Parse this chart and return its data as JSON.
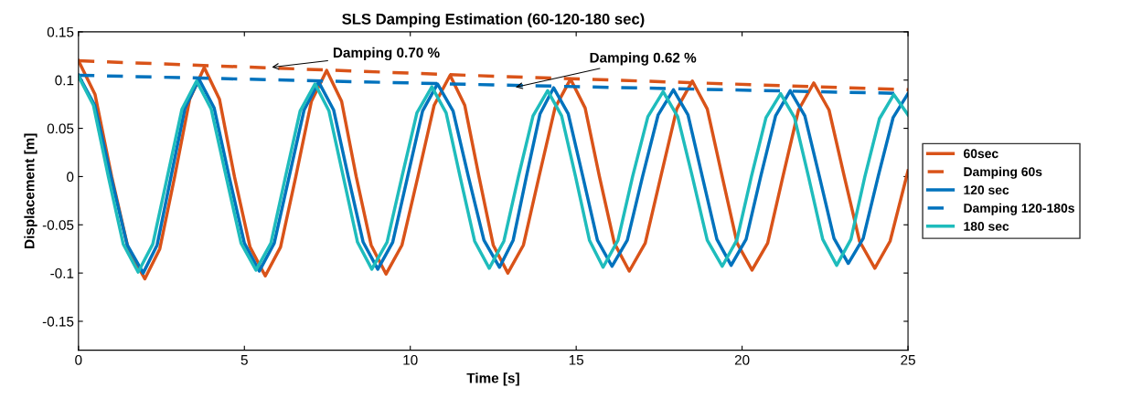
{
  "chart_data": {
    "type": "line",
    "title": "SLS Damping Estimation (60-120-180 sec)",
    "xlabel": "Time [s]",
    "ylabel": "Displacement [m]",
    "xlim": [
      0,
      25
    ],
    "xticks": [
      0,
      5,
      10,
      15,
      20,
      25
    ],
    "ylim": [
      -0.18,
      0.15
    ],
    "yticks": [
      -0.15,
      -0.1,
      -0.05,
      0,
      0.05,
      0.1,
      0.15
    ],
    "grid": false,
    "legend": "right",
    "line_style": "solid",
    "marker": "none",
    "annotations": [
      {
        "text": "Damping 0.70 %",
        "x": 5.75,
        "y": 0.113
      },
      {
        "text": "Damping 0.62 %",
        "x": 13.1,
        "y": 0.092
      }
    ],
    "series": [
      {
        "name": "60sec",
        "color": "#d95319",
        "x": [
          0,
          0.5,
          1.0,
          1.5,
          2.0,
          2.45,
          2.9,
          3.35,
          3.79,
          4.25,
          4.7,
          5.17,
          5.63,
          6.09,
          6.55,
          7.02,
          7.48,
          7.93,
          8.37,
          8.82,
          9.27,
          9.75,
          10.23,
          10.72,
          11.2,
          11.64,
          12.07,
          12.5,
          12.94,
          13.41,
          13.88,
          14.36,
          14.83,
          15.27,
          15.7,
          16.15,
          16.6,
          17.08,
          17.55,
          18.03,
          18.5,
          18.95,
          19.4,
          19.85,
          20.3,
          20.77,
          21.23,
          21.7,
          22.16,
          22.62,
          23.08,
          23.54,
          24.0,
          24.46,
          25
        ],
        "values": [
          0.12,
          0.085,
          0,
          -0.075,
          -0.106,
          -0.075,
          0,
          0.08,
          0.113,
          0.08,
          0,
          -0.073,
          -0.103,
          -0.073,
          0,
          0.078,
          0.11,
          0.078,
          0,
          -0.071,
          -0.101,
          -0.071,
          0,
          0.074,
          0.105,
          0.074,
          0,
          -0.071,
          -0.1,
          -0.071,
          0,
          0.071,
          0.101,
          0.071,
          0,
          -0.069,
          -0.098,
          -0.069,
          0,
          0.07,
          0.099,
          0.07,
          0,
          -0.069,
          -0.097,
          -0.069,
          0,
          0.069,
          0.097,
          0.069,
          0,
          -0.067,
          -0.095,
          -0.067,
          0.006
        ]
      },
      {
        "name": "Damping 60s",
        "color": "#d95319",
        "line_style": "dashed",
        "x": [
          0,
          12.5,
          25
        ],
        "values": [
          0.12,
          0.104,
          0.09
        ]
      },
      {
        "name": "120 sec",
        "color": "#0072bd",
        "x": [
          0,
          0.49,
          0.98,
          1.47,
          1.95,
          2.37,
          2.79,
          3.21,
          3.63,
          4.09,
          4.54,
          5.0,
          5.45,
          5.9,
          6.35,
          6.8,
          7.24,
          7.69,
          8.13,
          8.58,
          9.02,
          9.47,
          9.92,
          10.37,
          10.82,
          11.29,
          11.75,
          12.22,
          12.69,
          13.1,
          13.5,
          13.91,
          14.32,
          14.76,
          15.2,
          15.64,
          16.08,
          16.54,
          17.0,
          17.47,
          17.93,
          18.37,
          18.8,
          19.24,
          19.67,
          20.12,
          20.56,
          21.01,
          21.45,
          21.89,
          22.33,
          22.77,
          23.2,
          23.65,
          24.1,
          24.55,
          25
        ],
        "values": [
          0.105,
          0.074,
          0,
          -0.071,
          -0.1,
          -0.071,
          0,
          0.071,
          0.101,
          0.071,
          0,
          -0.069,
          -0.098,
          -0.069,
          0,
          0.069,
          0.098,
          0.069,
          0,
          -0.068,
          -0.096,
          -0.068,
          0,
          0.068,
          0.096,
          0.068,
          0,
          -0.066,
          -0.094,
          -0.066,
          0,
          0.065,
          0.092,
          0.065,
          0,
          -0.066,
          -0.093,
          -0.066,
          0,
          0.064,
          0.09,
          0.064,
          0,
          -0.065,
          -0.092,
          -0.065,
          0,
          0.063,
          0.089,
          0.063,
          0,
          -0.064,
          -0.09,
          -0.064,
          0,
          0.061,
          0.086
        ]
      },
      {
        "name": "Damping 120-180s",
        "color": "#0072bd",
        "line_style": "dashed",
        "x": [
          0,
          12.5,
          25
        ],
        "values": [
          0.105,
          0.095,
          0.086
        ]
      },
      {
        "name": "180 sec",
        "color": "#1fbcbc",
        "x": [
          0,
          0.45,
          0.9,
          1.35,
          1.8,
          2.24,
          2.68,
          3.12,
          3.56,
          4.0,
          4.45,
          4.9,
          5.35,
          5.8,
          6.24,
          6.68,
          7.13,
          7.55,
          7.98,
          8.41,
          8.84,
          9.3,
          9.75,
          10.2,
          10.65,
          11.08,
          11.5,
          11.94,
          12.38,
          12.82,
          13.26,
          13.7,
          14.14,
          14.56,
          14.98,
          15.4,
          15.81,
          16.26,
          16.7,
          17.16,
          17.62,
          18.06,
          18.5,
          18.95,
          19.4,
          19.84,
          20.28,
          20.72,
          21.16,
          21.58,
          22.0,
          22.43,
          22.85,
          23.28,
          23.7,
          24.14,
          24.57,
          25
        ],
        "values": [
          0.104,
          0.074,
          0,
          -0.07,
          -0.099,
          -0.07,
          0,
          0.07,
          0.099,
          0.07,
          0,
          -0.069,
          -0.097,
          -0.069,
          0,
          0.068,
          0.096,
          0.068,
          0,
          -0.068,
          -0.096,
          -0.068,
          0,
          0.066,
          0.093,
          0.066,
          0,
          -0.067,
          -0.095,
          -0.067,
          0,
          0.063,
          0.089,
          0.063,
          0,
          -0.066,
          -0.094,
          -0.066,
          0,
          0.062,
          0.088,
          0.062,
          0,
          -0.066,
          -0.093,
          -0.066,
          0,
          0.061,
          0.086,
          0.061,
          0,
          -0.065,
          -0.092,
          -0.065,
          0,
          0.06,
          0.085,
          0.064
        ]
      }
    ]
  }
}
